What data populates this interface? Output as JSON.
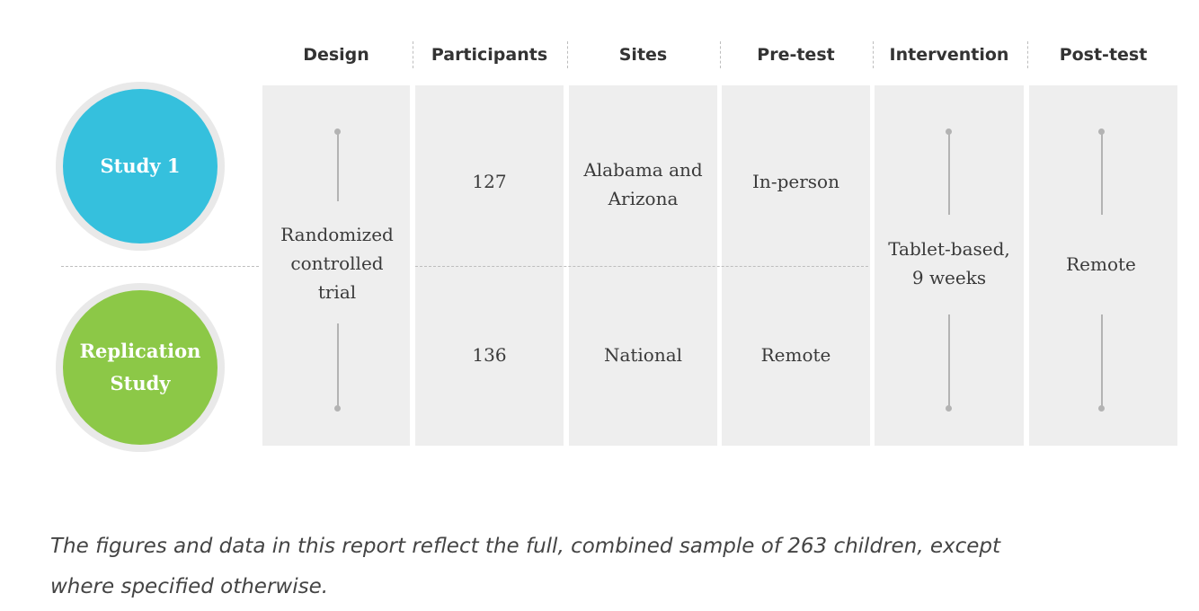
{
  "columns": [
    "Design",
    "Participants",
    "Sites",
    "Pre-test",
    "Intervention",
    "Post-test"
  ],
  "studies": [
    {
      "label": "Study 1",
      "color": "#35c0dd"
    },
    {
      "label": "Replication Study",
      "color": "#8cc847"
    }
  ],
  "design": "Randomized controlled trial",
  "participants": [
    "127",
    "136"
  ],
  "sites": [
    "Alabama and Arizona",
    "National"
  ],
  "pretest": [
    "In-person",
    "Remote"
  ],
  "intervention": "Tablet-based, 9 weeks",
  "posttest": "Remote",
  "caption": "The figures and data in this report reflect the full, combined sample of 263 children, except where specified otherwise."
}
